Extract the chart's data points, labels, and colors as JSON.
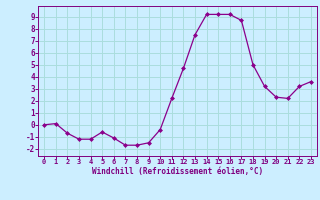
{
  "x": [
    0,
    1,
    2,
    3,
    4,
    5,
    6,
    7,
    8,
    9,
    10,
    11,
    12,
    13,
    14,
    15,
    16,
    17,
    18,
    19,
    20,
    21,
    22,
    23
  ],
  "y": [
    0.0,
    0.1,
    -0.7,
    -1.2,
    -1.2,
    -0.6,
    -1.1,
    -1.7,
    -1.7,
    -1.5,
    -0.4,
    2.2,
    4.7,
    7.5,
    9.2,
    9.2,
    9.2,
    8.7,
    5.0,
    3.2,
    2.3,
    2.2,
    3.2,
    3.6
  ],
  "line_color": "#8B008B",
  "marker": "D",
  "marker_size": 2.0,
  "bg_color": "#cceeff",
  "grid_color": "#aadddd",
  "xlabel": "Windchill (Refroidissement éolien,°C)",
  "xlim": [
    -0.5,
    23.5
  ],
  "ylim": [
    -2.6,
    9.9
  ],
  "yticks": [
    -2,
    -1,
    0,
    1,
    2,
    3,
    4,
    5,
    6,
    7,
    8,
    9
  ],
  "xticks": [
    0,
    1,
    2,
    3,
    4,
    5,
    6,
    7,
    8,
    9,
    10,
    11,
    12,
    13,
    14,
    15,
    16,
    17,
    18,
    19,
    20,
    21,
    22,
    23
  ],
  "tick_color": "#800080",
  "label_color": "#800080",
  "spine_color": "#800080",
  "xlabel_fontsize": 5.5,
  "tick_fontsize": 5.5,
  "xtick_fontsize": 5.0
}
